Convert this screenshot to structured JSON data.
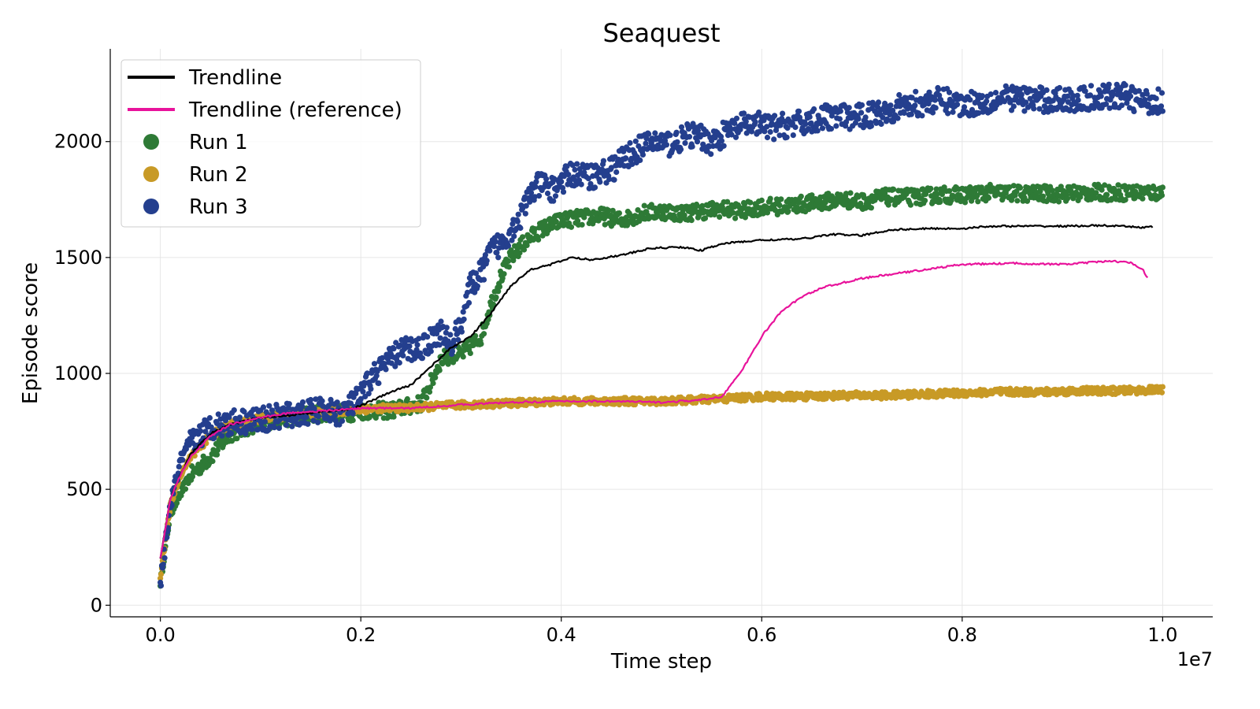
{
  "chart_data": {
    "type": "scatter",
    "title": "Seaquest",
    "xlabel": "Time step",
    "ylabel": "Episode score",
    "x_offset_label": "1e7",
    "x_scale": 10000000,
    "xlim": [
      -500000,
      10500000
    ],
    "ylim": [
      -50,
      2400
    ],
    "x_ticks": [
      0,
      2000000,
      4000000,
      6000000,
      8000000,
      10000000
    ],
    "x_tick_labels": [
      "0.0",
      "0.2",
      "0.4",
      "0.6",
      "0.8",
      "1.0"
    ],
    "y_ticks": [
      0,
      500,
      1000,
      1500,
      2000
    ],
    "y_tick_labels": [
      "0",
      "500",
      "1000",
      "1500",
      "2000"
    ],
    "grid": true,
    "legend_position": "top-left",
    "series": [
      {
        "name": "Trendline",
        "kind": "line",
        "color": "#000000",
        "x": [
          0,
          100000,
          200000,
          300000,
          500000,
          700000,
          1000000,
          1300000,
          1600000,
          1900000,
          2100000,
          2300000,
          2500000,
          2700000,
          2900000,
          3100000,
          3300000,
          3500000,
          3700000,
          3900000,
          4100000,
          4300000,
          4600000,
          4900000,
          5200000,
          5400000,
          5600000,
          6000000,
          6400000,
          6700000,
          7000000,
          7300000,
          7700000,
          8000000,
          8300000,
          8700000,
          9000000,
          9400000,
          9800000,
          9900000
        ],
        "y": [
          200,
          460,
          560,
          650,
          740,
          780,
          810,
          820,
          835,
          845,
          880,
          920,
          950,
          1030,
          1110,
          1160,
          1260,
          1380,
          1450,
          1470,
          1500,
          1490,
          1510,
          1540,
          1545,
          1530,
          1560,
          1575,
          1580,
          1600,
          1595,
          1620,
          1625,
          1625,
          1635,
          1635,
          1635,
          1638,
          1630,
          1632
        ]
      },
      {
        "name": "Trendline (reference)",
        "kind": "line",
        "color": "#e8139b",
        "x": [
          0,
          100000,
          200000,
          300000,
          500000,
          700000,
          1000000,
          1300000,
          1700000,
          2000000,
          2500000,
          3000000,
          3500000,
          4000000,
          4500000,
          5000000,
          5400000,
          5600000,
          5800000,
          6000000,
          6200000,
          6400000,
          6600000,
          7000000,
          7500000,
          8000000,
          8500000,
          9000000,
          9500000,
          9700000,
          9800000,
          9850000
        ],
        "y": [
          200,
          460,
          560,
          640,
          730,
          780,
          810,
          830,
          840,
          850,
          850,
          865,
          875,
          880,
          880,
          875,
          885,
          900,
          1010,
          1160,
          1270,
          1330,
          1370,
          1410,
          1440,
          1470,
          1475,
          1470,
          1485,
          1475,
          1450,
          1410
        ]
      },
      {
        "name": "Run 1",
        "kind": "scatter",
        "color": "#2e7a36",
        "noise": 35,
        "x": [
          0,
          100000,
          200000,
          300000,
          500000,
          700000,
          1000000,
          1300000,
          1600000,
          1900000,
          2100000,
          2300000,
          2500000,
          2600000,
          2700000,
          2800000,
          2900000,
          3000000,
          3100000,
          3200000,
          3300000,
          3400000,
          3500000,
          3600000,
          3700000,
          3800000,
          3900000,
          4000000,
          4200000,
          4400000,
          4600000,
          4800000,
          5000000,
          5200000,
          5400000,
          5600000,
          5800000,
          6000000,
          6200000,
          6400000,
          6600000,
          6800000,
          7000000,
          7200000,
          7500000,
          7800000,
          8000000,
          8300000,
          8600000,
          9000000,
          9300000,
          9600000,
          10000000
        ],
        "y": [
          100,
          400,
          480,
          560,
          640,
          740,
          790,
          810,
          830,
          830,
          840,
          840,
          860,
          870,
          960,
          1060,
          1080,
          1080,
          1120,
          1160,
          1300,
          1420,
          1500,
          1550,
          1590,
          1620,
          1640,
          1660,
          1670,
          1680,
          1660,
          1690,
          1700,
          1690,
          1700,
          1710,
          1700,
          1720,
          1720,
          1730,
          1740,
          1750,
          1740,
          1760,
          1760,
          1770,
          1770,
          1780,
          1775,
          1775,
          1780,
          1780,
          1780
        ]
      },
      {
        "name": "Run 2",
        "kind": "scatter",
        "color": "#c89a26",
        "noise": 15,
        "x": [
          0,
          100000,
          200000,
          300000,
          500000,
          700000,
          1000000,
          1300000,
          1600000,
          1900000,
          2200000,
          2500000,
          2800000,
          3100000,
          3400000,
          3700000,
          4000000,
          4300000,
          4600000,
          5000000,
          5300000,
          5600000,
          6000000,
          6400000,
          6800000,
          7200000,
          7600000,
          8000000,
          8400000,
          8800000,
          9200000,
          9600000,
          10000000
        ],
        "y": [
          120,
          430,
          560,
          640,
          730,
          780,
          805,
          820,
          830,
          840,
          850,
          850,
          860,
          865,
          870,
          875,
          880,
          880,
          880,
          880,
          885,
          890,
          900,
          900,
          905,
          905,
          910,
          915,
          920,
          920,
          925,
          925,
          930
        ]
      },
      {
        "name": "Run 3",
        "kind": "scatter",
        "color": "#243f8e",
        "noise": 55,
        "x": [
          0,
          100000,
          200000,
          300000,
          500000,
          700000,
          1000000,
          1300000,
          1600000,
          1800000,
          1900000,
          2000000,
          2100000,
          2200000,
          2400000,
          2600000,
          2800000,
          2900000,
          3000000,
          3100000,
          3200000,
          3300000,
          3400000,
          3500000,
          3600000,
          3700000,
          3800000,
          3900000,
          4100000,
          4300000,
          4500000,
          4700000,
          4900000,
          5100000,
          5300000,
          5500000,
          5700000,
          5900000,
          6100000,
          6400000,
          6700000,
          6900000,
          7200000,
          7500000,
          7800000,
          8000000,
          8200000,
          8500000,
          8800000,
          9100000,
          9400000,
          9600000,
          9800000,
          10000000
        ],
        "y": [
          90,
          430,
          620,
          700,
          770,
          790,
          800,
          820,
          840,
          830,
          860,
          900,
          980,
          1020,
          1100,
          1110,
          1180,
          1120,
          1220,
          1380,
          1430,
          1530,
          1560,
          1620,
          1680,
          1780,
          1820,
          1790,
          1860,
          1850,
          1880,
          1950,
          2000,
          1990,
          2030,
          2000,
          2050,
          2080,
          2060,
          2080,
          2110,
          2100,
          2130,
          2160,
          2180,
          2160,
          2170,
          2190,
          2180,
          2180,
          2190,
          2200,
          2170,
          2180
        ]
      }
    ]
  }
}
